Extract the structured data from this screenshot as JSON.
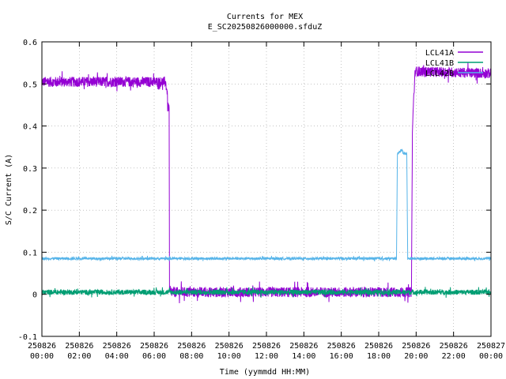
{
  "chart_data": {
    "type": "line",
    "title": "Currents for MEX",
    "subtitle": "E_SC20250826000000.sfduZ",
    "xlabel": "Time (yymmdd HH:MM)",
    "ylabel": "S/C Current (A)",
    "ylim": [
      -0.1,
      0.6
    ],
    "xlim": [
      0,
      24
    ],
    "y_ticks": [
      "-0.1",
      "0",
      "0.1",
      "0.2",
      "0.3",
      "0.4",
      "0.5",
      "0.6"
    ],
    "x_ticks": [
      {
        "date": "250826",
        "time": "00:00"
      },
      {
        "date": "250826",
        "time": "02:00"
      },
      {
        "date": "250826",
        "time": "04:00"
      },
      {
        "date": "250826",
        "time": "06:00"
      },
      {
        "date": "250826",
        "time": "08:00"
      },
      {
        "date": "250826",
        "time": "10:00"
      },
      {
        "date": "250826",
        "time": "12:00"
      },
      {
        "date": "250826",
        "time": "14:00"
      },
      {
        "date": "250826",
        "time": "16:00"
      },
      {
        "date": "250826",
        "time": "18:00"
      },
      {
        "date": "250826",
        "time": "20:00"
      },
      {
        "date": "250826",
        "time": "22:00"
      },
      {
        "date": "250827",
        "time": "00:00"
      }
    ],
    "grid": true,
    "legend_position": "top-right",
    "series": [
      {
        "name": "LCL41A",
        "color": "#9400d3",
        "x": [
          0,
          6.6,
          6.7,
          6.72,
          6.8,
          6.82,
          19.75,
          19.8,
          19.85,
          19.95,
          24
        ],
        "y": [
          0.505,
          0.505,
          0.48,
          0.445,
          0.445,
          0.005,
          0.005,
          0.38,
          0.45,
          0.53,
          0.525
        ],
        "noise": 0.012
      },
      {
        "name": "LCL41B",
        "color": "#009e73",
        "x": [
          0,
          24
        ],
        "y": [
          0.005,
          0.005
        ],
        "noise": 0.006
      },
      {
        "name": "LCL42B",
        "color": "#56b4e9",
        "x": [
          0,
          18.95,
          19.0,
          19.05,
          19.25,
          19.3,
          19.5,
          19.55,
          24
        ],
        "y": [
          0.085,
          0.085,
          0.335,
          0.335,
          0.345,
          0.335,
          0.335,
          0.085,
          0.085
        ],
        "noise": 0.003
      }
    ]
  }
}
